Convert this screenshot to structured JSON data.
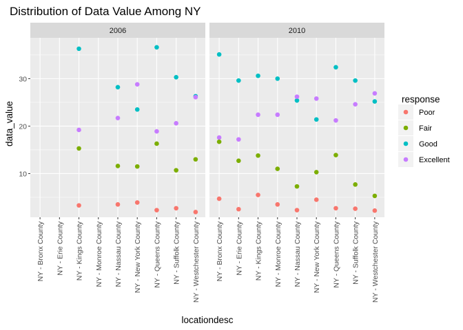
{
  "chart_data": {
    "type": "scatter",
    "title": "Distribution of Data Value Among NY",
    "xlabel": "locationdesc",
    "ylabel": "data_value",
    "ylim": [
      0.8,
      38.6
    ],
    "yticks": [
      10,
      20,
      30
    ],
    "grid": true,
    "legend": {
      "title": "response",
      "position": "right"
    },
    "categories": [
      "NY - Bronx County",
      "NY - Erie County",
      "NY - Kings County",
      "NY - Monroe County",
      "NY - Nassau County",
      "NY - New York County",
      "NY - Queens County",
      "NY - Suffolk County",
      "NY - Westchester County"
    ],
    "series": [
      {
        "name": "Poor",
        "color": "#F8766D"
      },
      {
        "name": "Fair",
        "color": "#7CAE00"
      },
      {
        "name": "Good",
        "color": "#00BFC4"
      },
      {
        "name": "Excellent",
        "color": "#C77CFF"
      }
    ],
    "panels": [
      {
        "label": "2006",
        "values": {
          "Poor": [
            null,
            null,
            3.3,
            null,
            3.5,
            3.9,
            2.3,
            2.7,
            1.9
          ],
          "Fair": [
            null,
            null,
            15.3,
            null,
            11.6,
            11.5,
            16.3,
            10.7,
            13.0
          ],
          "Good": [
            null,
            null,
            36.3,
            null,
            28.2,
            23.5,
            36.6,
            30.3,
            26.3
          ],
          "Excellent": [
            null,
            null,
            19.2,
            null,
            21.7,
            28.8,
            18.9,
            20.6,
            26.1
          ]
        }
      },
      {
        "label": "2010",
        "values": {
          "Poor": [
            4.7,
            2.5,
            5.5,
            3.5,
            2.3,
            4.5,
            2.7,
            2.6,
            2.2
          ],
          "Fair": [
            16.7,
            12.7,
            13.8,
            11.0,
            7.3,
            10.3,
            13.9,
            7.7,
            5.3
          ],
          "Good": [
            35.1,
            29.6,
            30.6,
            30.0,
            25.4,
            21.4,
            32.4,
            29.6,
            25.2
          ],
          "Excellent": [
            17.6,
            17.2,
            22.4,
            22.4,
            26.2,
            25.8,
            21.2,
            24.6,
            26.9
          ]
        }
      }
    ]
  }
}
